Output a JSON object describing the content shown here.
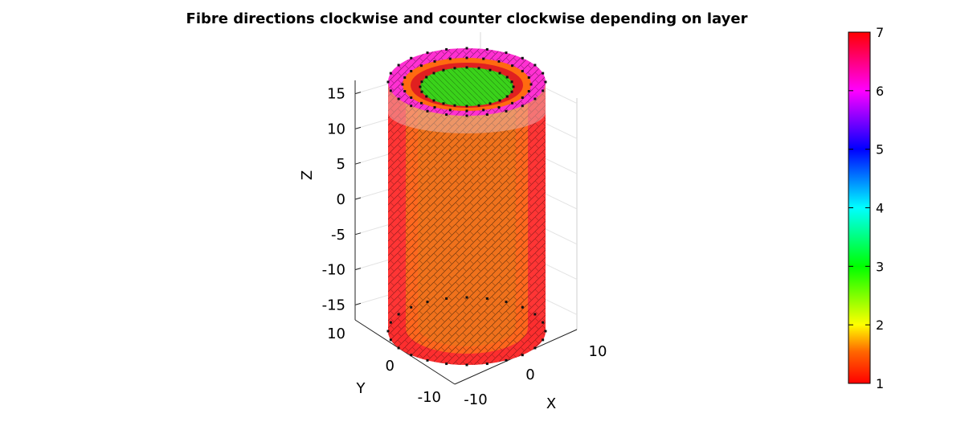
{
  "chart_data": {
    "type": "other",
    "title": "Fibre directions clockwise and counter clockwise depending on layer",
    "xlabel": "X",
    "ylabel": "Y",
    "zlabel": "Z",
    "x_ticks": [
      "-10",
      "0",
      "10"
    ],
    "y_ticks": [
      "-10",
      "0",
      "10"
    ],
    "z_ticks": [
      "-15",
      "-10",
      "-5",
      "0",
      "5",
      "10",
      "15"
    ],
    "xlim": [
      -13,
      13
    ],
    "ylim": [
      -13,
      13
    ],
    "zlim": [
      -17,
      17
    ],
    "grid": true,
    "colorbar": {
      "ticks": [
        "1",
        "2",
        "3",
        "4",
        "5",
        "6",
        "7"
      ],
      "range": [
        1,
        7
      ],
      "colormap": "hsv"
    },
    "layers": [
      {
        "layer": 1,
        "color": "#ff2020",
        "outer_radius": 13
      },
      {
        "layer": 1.6,
        "color": "#ff6a10",
        "outer_radius": 11
      },
      {
        "layer": 3,
        "color": "#44d61a",
        "outer_radius": 8
      },
      {
        "layer": 6.6,
        "color": "#ff2fd0",
        "outer_radius": 13
      }
    ]
  }
}
